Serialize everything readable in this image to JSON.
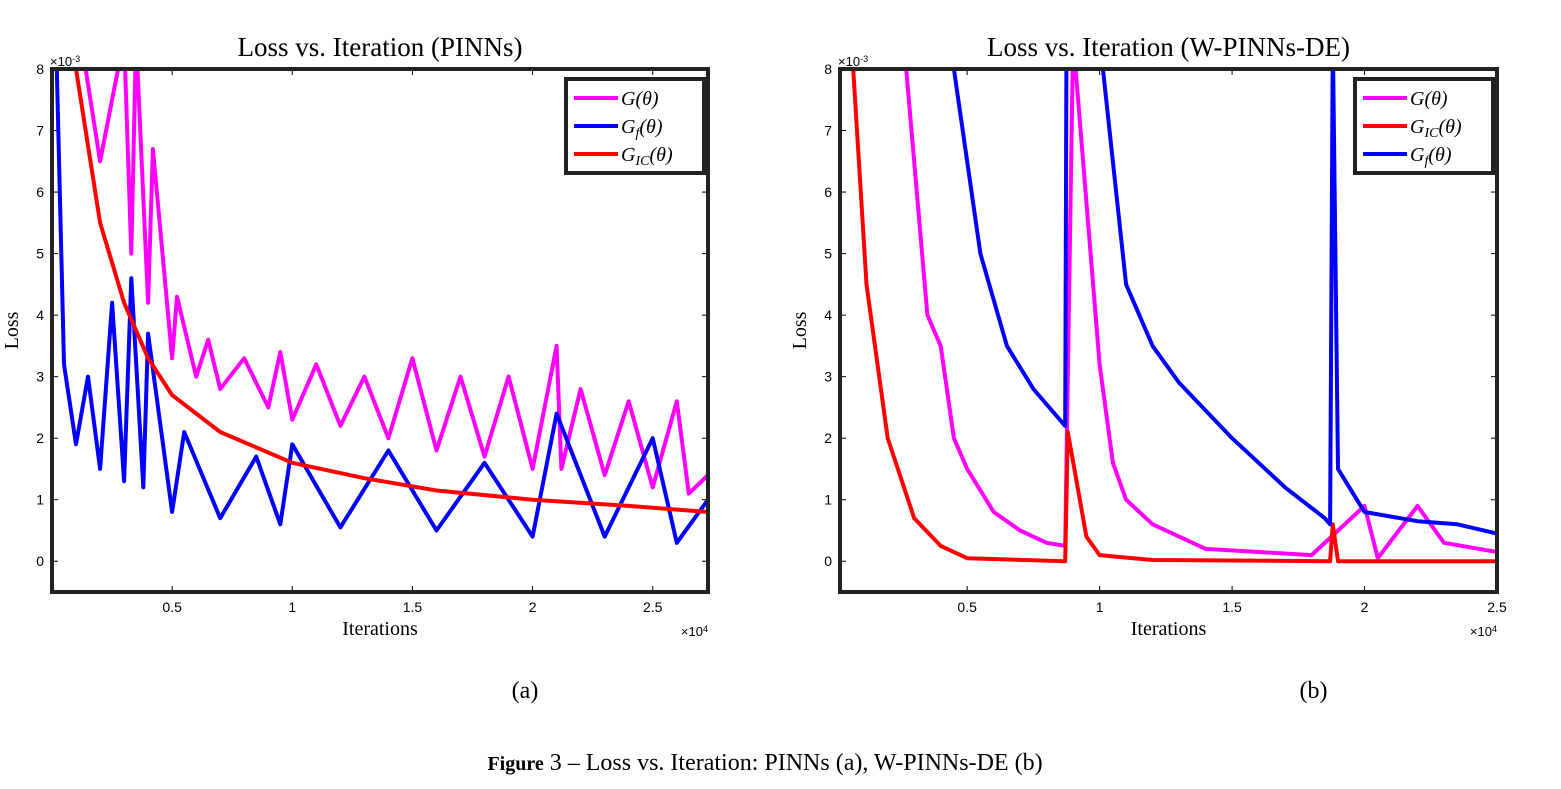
{
  "chart_data": [
    {
      "type": "line",
      "title": "Loss vs. Iteration (PINNs)",
      "xlabel": "Iterations",
      "ylabel": "Loss",
      "x_multiplier": "×10^{4}",
      "y_multiplier": "×10^{-3}",
      "panel_label": "(a)",
      "xlim": [
        0,
        2.73
      ],
      "ylim": [
        -0.5,
        8
      ],
      "xticks": [
        0.5,
        1,
        1.5,
        2,
        2.5
      ],
      "yticks": [
        0,
        1,
        2,
        3,
        4,
        5,
        6,
        7,
        8
      ],
      "grid": false,
      "legend": "northeast",
      "series": [
        {
          "name": "G(θ)",
          "color": "#ff00ff",
          "x": [
            0.12,
            0.2,
            0.3,
            0.33,
            0.35,
            0.4,
            0.42,
            0.5,
            0.52,
            0.6,
            0.65,
            0.7,
            0.8,
            0.9,
            0.95,
            1.0,
            1.1,
            1.2,
            1.3,
            1.4,
            1.5,
            1.6,
            1.7,
            1.8,
            1.9,
            2.0,
            2.1,
            2.12,
            2.2,
            2.3,
            2.4,
            2.5,
            2.6,
            2.65,
            2.73
          ],
          "values": [
            8.5,
            6.5,
            8.5,
            5.0,
            8.5,
            4.2,
            6.7,
            3.3,
            4.3,
            3.0,
            3.6,
            2.8,
            3.3,
            2.5,
            3.4,
            2.3,
            3.2,
            2.2,
            3.0,
            2.0,
            3.3,
            1.8,
            3.0,
            1.7,
            3.0,
            1.5,
            3.5,
            1.5,
            2.8,
            1.4,
            2.6,
            1.2,
            2.6,
            1.1,
            1.4
          ]
        },
        {
          "name": "G_{f}(θ)",
          "color": "#0000ff",
          "x": [
            0.02,
            0.05,
            0.1,
            0.15,
            0.2,
            0.25,
            0.3,
            0.33,
            0.38,
            0.4,
            0.5,
            0.55,
            0.7,
            0.85,
            0.95,
            1.0,
            1.2,
            1.4,
            1.6,
            1.8,
            2.0,
            2.1,
            2.3,
            2.5,
            2.6,
            2.73
          ],
          "values": [
            8,
            3.2,
            1.9,
            3.0,
            1.5,
            4.2,
            1.3,
            4.6,
            1.2,
            3.7,
            0.8,
            2.1,
            0.7,
            1.7,
            0.6,
            1.9,
            0.55,
            1.8,
            0.5,
            1.6,
            0.4,
            2.4,
            0.4,
            2.0,
            0.3,
            1.0
          ]
        },
        {
          "name": "G_{IC}(θ)",
          "color": "#ff0000",
          "x": [
            0.1,
            0.2,
            0.3,
            0.4,
            0.5,
            0.7,
            1.0,
            1.3,
            1.6,
            2.0,
            2.4,
            2.73
          ],
          "values": [
            8,
            5.5,
            4.2,
            3.3,
            2.7,
            2.1,
            1.6,
            1.35,
            1.15,
            1.0,
            0.9,
            0.8
          ]
        }
      ]
    },
    {
      "type": "line",
      "title": "Loss vs. Iteration (W-PINNs-DE)",
      "xlabel": "Iterations",
      "ylabel": "Loss",
      "x_multiplier": "×10^{4}",
      "y_multiplier": "×10^{-3}",
      "panel_label": "(b)",
      "xlim": [
        0.02,
        2.5
      ],
      "ylim": [
        -0.5,
        8
      ],
      "xticks": [
        0.5,
        1,
        1.5,
        2,
        2.5
      ],
      "yticks": [
        0,
        1,
        2,
        3,
        4,
        5,
        6,
        7,
        8
      ],
      "grid": false,
      "legend": "northeast",
      "series": [
        {
          "name": "G(θ)",
          "color": "#ff00ff",
          "x": [
            0.27,
            0.35,
            0.4,
            0.45,
            0.5,
            0.6,
            0.7,
            0.8,
            0.87,
            0.9,
            1.0,
            1.05,
            1.1,
            1.2,
            1.3,
            1.4,
            1.6,
            1.8,
            2.0,
            2.05,
            2.2,
            2.3,
            2.5
          ],
          "values": [
            8,
            4,
            3.5,
            2.0,
            1.5,
            0.8,
            0.5,
            0.3,
            0.25,
            8.5,
            3.2,
            1.6,
            1.0,
            0.6,
            0.4,
            0.2,
            0.15,
            0.1,
            0.9,
            0.05,
            0.9,
            0.3,
            0.15
          ]
        },
        {
          "name": "G_{IC}(θ)",
          "color": "#ff0000",
          "x": [
            0.07,
            0.12,
            0.2,
            0.3,
            0.4,
            0.5,
            0.87,
            0.88,
            0.95,
            1.0,
            1.2,
            1.87,
            1.88,
            1.9,
            2.5
          ],
          "values": [
            8,
            4.5,
            2.0,
            0.7,
            0.25,
            0.05,
            0.0,
            2.1,
            0.4,
            0.1,
            0.02,
            0.0,
            0.6,
            0.0,
            0.0
          ]
        },
        {
          "name": "G_{f}(θ)",
          "color": "#0000ff",
          "x": [
            0.45,
            0.55,
            0.65,
            0.75,
            0.87,
            0.875,
            1.0,
            1.1,
            1.2,
            1.3,
            1.5,
            1.7,
            1.85,
            1.87,
            1.88,
            1.9,
            2.0,
            2.2,
            2.35,
            2.5
          ],
          "values": [
            8,
            5,
            3.5,
            2.8,
            2.2,
            8.5,
            8.5,
            4.5,
            3.5,
            2.9,
            2.0,
            1.2,
            0.7,
            0.6,
            8.5,
            1.5,
            0.8,
            0.65,
            0.6,
            0.45
          ]
        }
      ]
    }
  ],
  "caption": {
    "label": "Figure",
    "text": "3 – Loss vs. Iteration: PINNs (a), W-PINNs-DE (b)"
  }
}
